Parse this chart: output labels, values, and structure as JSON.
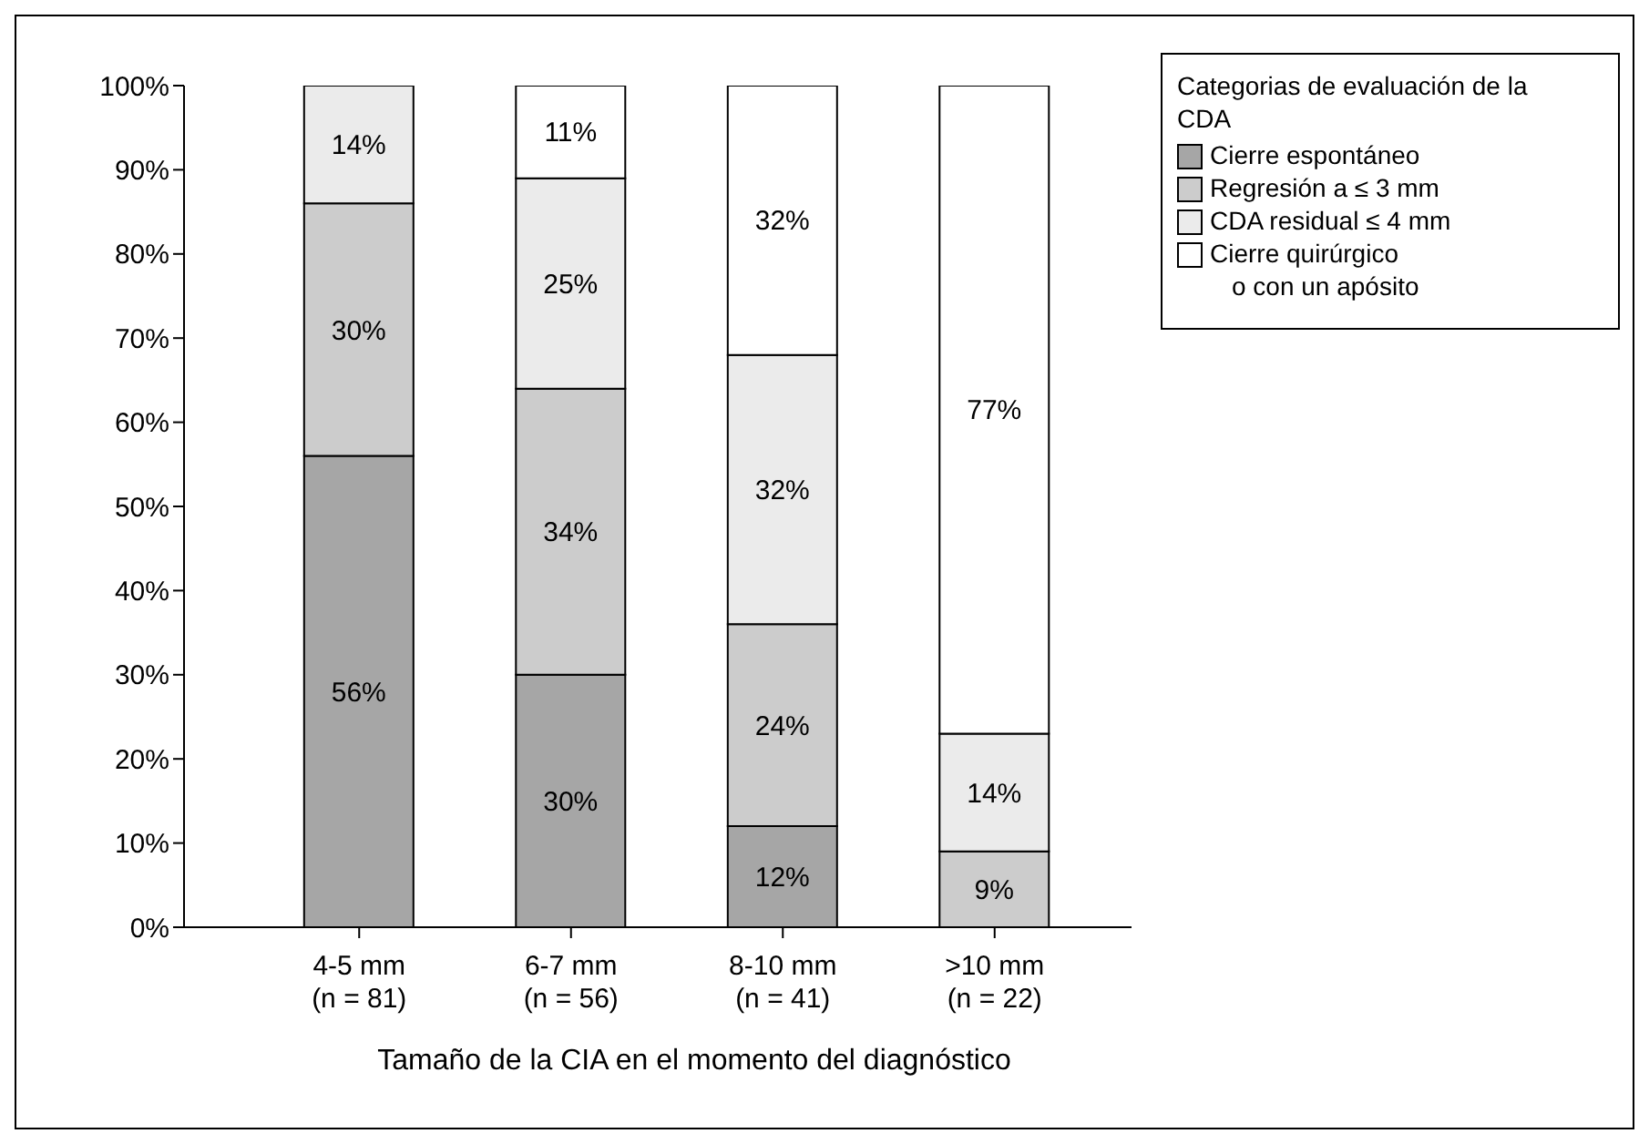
{
  "chart_data": {
    "type": "bar",
    "stacked": true,
    "xlabel": "Tamaño de la CIA en el momento del diagnóstico",
    "legend_title": "Categorias de evaluación de la CDA",
    "legend": "right",
    "categories": [
      "4-5 mm\n(n = 81)",
      "6-7 mm\n(n = 56)",
      "8-10 mm\n(n = 41)",
      ">10 mm\n(n = 22)"
    ],
    "ylim": [
      0,
      100
    ],
    "yticks": [
      {
        "value": 0,
        "label": "0%"
      },
      {
        "value": 10,
        "label": "10%"
      },
      {
        "value": 20,
        "label": "20%"
      },
      {
        "value": 30,
        "label": "30%"
      },
      {
        "value": 40,
        "label": "40%"
      },
      {
        "value": 50,
        "label": "50%"
      },
      {
        "value": 60,
        "label": "60%"
      },
      {
        "value": 70,
        "label": "70%"
      },
      {
        "value": 80,
        "label": "80%"
      },
      {
        "value": 90,
        "label": "90%"
      },
      {
        "value": 100,
        "label": "100%"
      }
    ],
    "series": [
      {
        "name": "Cierre espontáneo",
        "color": "#a6a6a6",
        "values": [
          56,
          30,
          12,
          null
        ],
        "value_labels": [
          "56%",
          "30%",
          "12%",
          null
        ]
      },
      {
        "name": "Regresión a ≤ 3 mm",
        "color": "#cccccc",
        "values": [
          30,
          34,
          24,
          9
        ],
        "value_labels": [
          "30%",
          "34%",
          "24%",
          "9%"
        ]
      },
      {
        "name": "CDA residual ≤ 4 mm",
        "color": "#ebebeb",
        "values": [
          14,
          25,
          32,
          14
        ],
        "value_labels": [
          "14%",
          "25%",
          "32%",
          "14%"
        ]
      },
      {
        "name": "Cierre quirúrgico\no con un apósito",
        "color": "#ffffff",
        "values": [
          null,
          11,
          32,
          77
        ],
        "value_labels": [
          null,
          "11%",
          "32%",
          "77%"
        ]
      }
    ]
  }
}
